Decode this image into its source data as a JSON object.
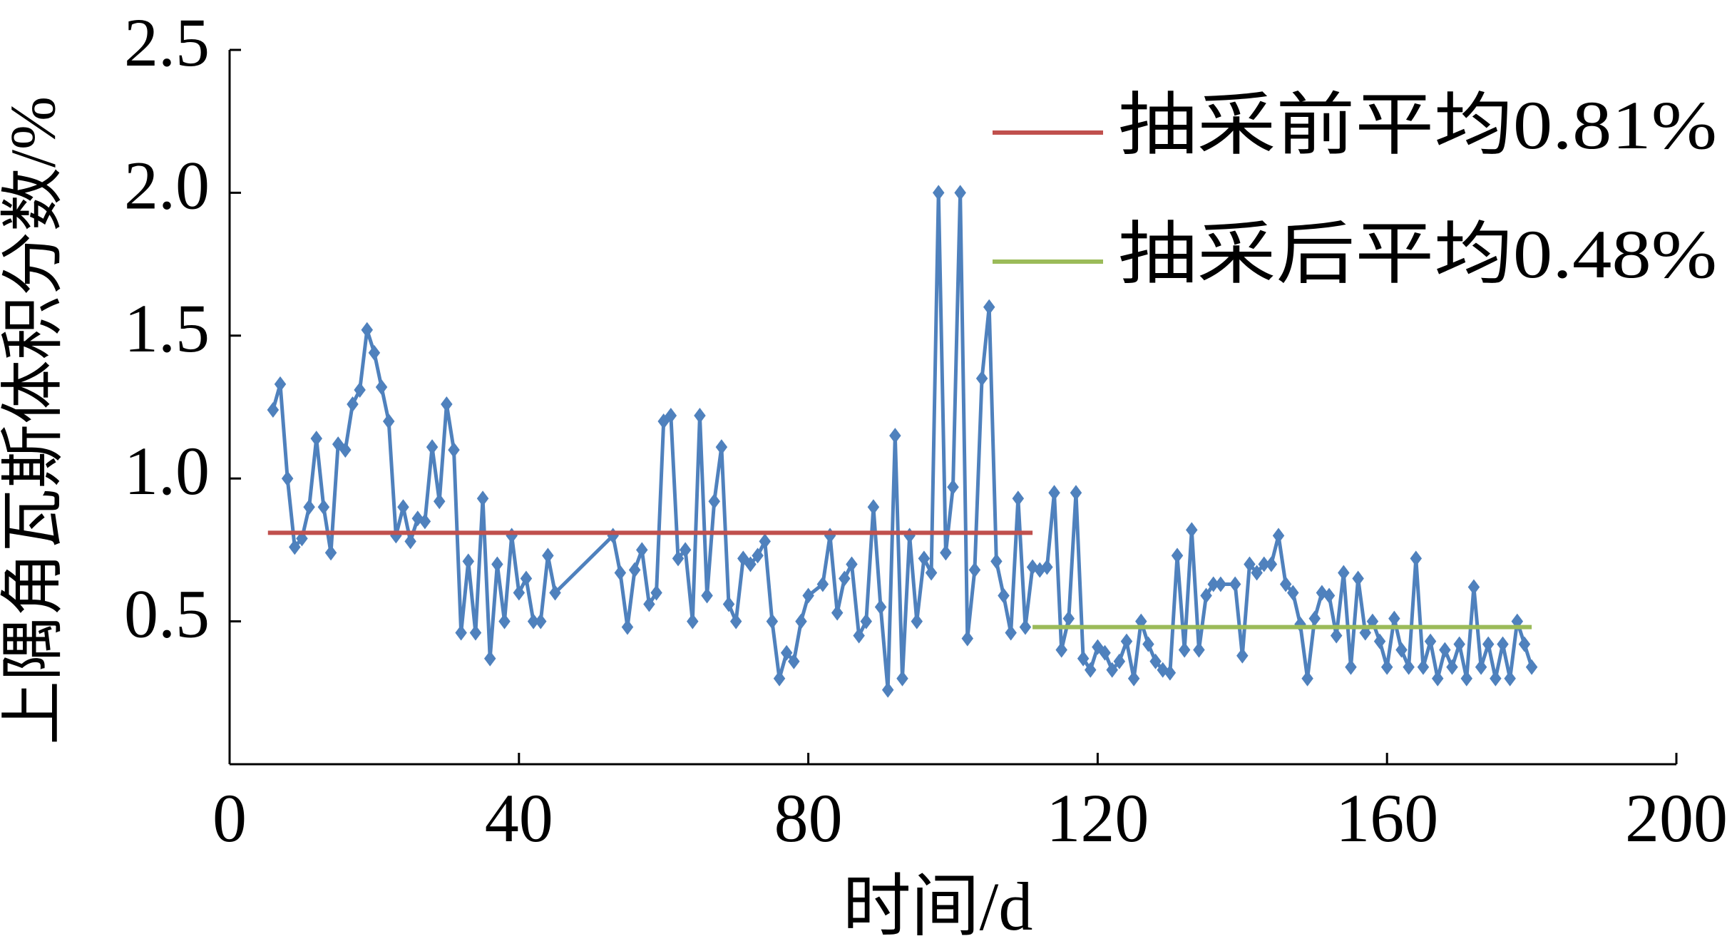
{
  "chart_data": {
    "type": "line",
    "xlabel": "时间/d",
    "ylabel": "上隅角瓦斯体积分数/%",
    "xlim": [
      0,
      200
    ],
    "xticks": [
      0,
      40,
      80,
      120,
      160,
      200
    ],
    "ylim": [
      0,
      2.5
    ],
    "yticks": [
      0.5,
      {
        "value": 1,
        "label": "1.0"
      },
      1.5,
      {
        "value": 2,
        "label": "2.0"
      },
      2.5
    ],
    "legend": "top-right",
    "series": [
      {
        "name": "瓦斯体积分数",
        "color": "#4f81bd",
        "marker": "diamond",
        "x": [
          6,
          7,
          8,
          9,
          10,
          11,
          12,
          13,
          14,
          15,
          16,
          17,
          18,
          19,
          20,
          21,
          22,
          23,
          24,
          25,
          26,
          27,
          28,
          29,
          30,
          31,
          32,
          33,
          34,
          35,
          36,
          37,
          38,
          39,
          40,
          41,
          42,
          43,
          44,
          45,
          53,
          54,
          55,
          56,
          57,
          58,
          59,
          60,
          61,
          62,
          63,
          64,
          65,
          66,
          67,
          68,
          69,
          70,
          71,
          72,
          73,
          74,
          75,
          76,
          77,
          78,
          79,
          80,
          82,
          83,
          84,
          85,
          86,
          87,
          88,
          89,
          90,
          91,
          92,
          93,
          94,
          95,
          96,
          97,
          98,
          99,
          100,
          101,
          102,
          103,
          104,
          105,
          106,
          107,
          108,
          109,
          110,
          111,
          112,
          113,
          114,
          115,
          116,
          117,
          118,
          119,
          120,
          121,
          122,
          123,
          124,
          125,
          126,
          127,
          128,
          129,
          130,
          131,
          132,
          133,
          134,
          135,
          136,
          137,
          139,
          140,
          141,
          142,
          143,
          144,
          145,
          146,
          147,
          148,
          149,
          150,
          151,
          152,
          153,
          154,
          155,
          156,
          157,
          158,
          159,
          160,
          161,
          162,
          163,
          164,
          165,
          166,
          167,
          168,
          169,
          170,
          171,
          172,
          173,
          174,
          175,
          176,
          177,
          178,
          179,
          180
        ],
        "values": [
          1.24,
          1.33,
          1.0,
          0.76,
          0.79,
          0.9,
          1.14,
          0.9,
          0.74,
          1.12,
          1.1,
          1.26,
          1.31,
          1.52,
          1.44,
          1.32,
          1.2,
          0.8,
          0.9,
          0.78,
          0.86,
          0.85,
          1.11,
          0.92,
          1.26,
          1.1,
          0.46,
          0.71,
          0.46,
          0.93,
          0.37,
          0.7,
          0.5,
          0.8,
          0.6,
          0.65,
          0.5,
          0.5,
          0.73,
          0.6,
          0.8,
          0.67,
          0.48,
          0.68,
          0.75,
          0.56,
          0.6,
          1.2,
          1.22,
          0.72,
          0.75,
          0.5,
          1.22,
          0.59,
          0.92,
          1.11,
          0.56,
          0.5,
          0.72,
          0.7,
          0.73,
          0.78,
          0.5,
          0.3,
          0.39,
          0.36,
          0.5,
          0.59,
          0.63,
          0.8,
          0.53,
          0.65,
          0.7,
          0.45,
          0.5,
          0.9,
          0.55,
          0.26,
          1.15,
          0.3,
          0.8,
          0.5,
          0.72,
          0.67,
          2.0,
          0.74,
          0.97,
          2.0,
          0.44,
          0.68,
          1.35,
          1.6,
          0.71,
          0.59,
          0.46,
          0.93,
          0.48,
          0.69,
          0.68,
          0.69,
          0.95,
          0.4,
          0.51,
          0.95,
          0.37,
          0.33,
          0.41,
          0.39,
          0.33,
          0.36,
          0.43,
          0.3,
          0.5,
          0.42,
          0.36,
          0.33,
          0.32,
          0.73,
          0.4,
          0.82,
          0.4,
          0.59,
          0.63,
          0.63,
          0.63,
          0.38,
          0.7,
          0.67,
          0.7,
          0.7,
          0.8,
          0.63,
          0.6,
          0.49,
          0.3,
          0.51,
          0.6,
          0.59,
          0.45,
          0.67,
          0.34,
          0.65,
          0.46,
          0.5,
          0.43,
          0.34,
          0.51,
          0.4,
          0.34,
          0.72,
          0.34,
          0.43,
          0.3,
          0.4,
          0.34,
          0.42,
          0.3,
          0.62,
          0.34,
          0.42,
          0.3,
          0.42,
          0.3,
          0.5,
          0.42,
          0.34
        ]
      },
      {
        "name": "抽采前平均0.81%",
        "color": "#c0504d",
        "x": [
          5.3,
          111
        ],
        "values": [
          0.81,
          0.81
        ]
      },
      {
        "name": "抽采后平均0.48%",
        "color": "#9bbb59",
        "x": [
          111,
          180
        ],
        "values": [
          0.48,
          0.48
        ]
      }
    ]
  }
}
